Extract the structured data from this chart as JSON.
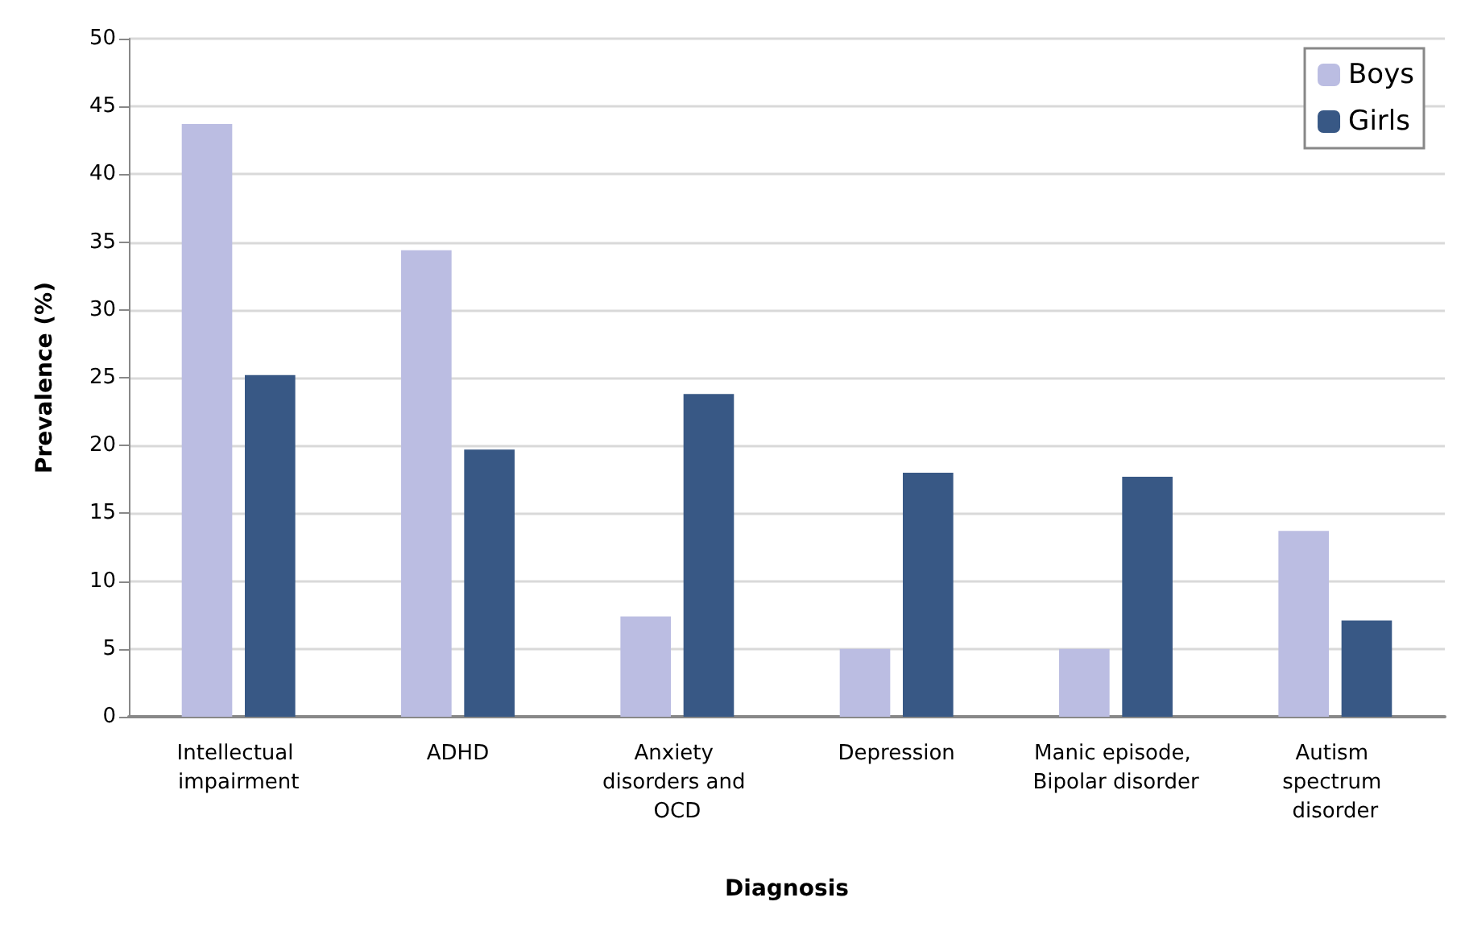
{
  "chart_data": {
    "type": "bar",
    "xlabel": "Diagnosis",
    "ylabel": "Prevalence (%)",
    "categories": [
      "Intellectual impairment",
      "ADHD",
      "Anxiety disorders and OCD",
      "Depression",
      "Manic episode, Bipolar disorder",
      "Autism spectrum disorder"
    ],
    "series": [
      {
        "name": "Boys",
        "color": "#bbbde2",
        "values": [
          43.7,
          34.4,
          7.4,
          5.0,
          5.0,
          13.7
        ]
      },
      {
        "name": "Girls",
        "color": "#385885",
        "values": [
          25.2,
          19.7,
          23.8,
          18.0,
          17.7,
          7.1
        ]
      }
    ],
    "ylim": [
      0,
      50
    ],
    "yticks": [
      0,
      5,
      10,
      15,
      20,
      25,
      30,
      35,
      40,
      45,
      50
    ],
    "grid": "y",
    "legend": "top right"
  }
}
